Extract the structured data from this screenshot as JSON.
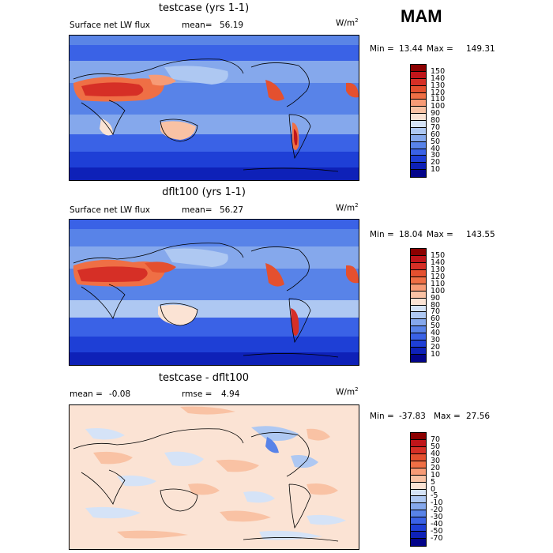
{
  "season": "MAM",
  "panels": [
    {
      "title": "testcase (yrs 1-1)",
      "left_label": "Surface net LW flux",
      "stat_label": "mean=",
      "stat_value": "56.19",
      "units": "W/m",
      "units_exp": "2",
      "min_label": "Min =",
      "min_value": "13.44",
      "max_label": "Max =",
      "max_value": "149.31",
      "levels": [
        "150",
        "140",
        "130",
        "120",
        "110",
        "100",
        "90",
        "80",
        "70",
        "60",
        "50",
        "40",
        "30",
        "20",
        "10"
      ],
      "colors": [
        "#8b0000",
        "#c0151a",
        "#d62f26",
        "#e4502f",
        "#ef6f45",
        "#f79b76",
        "#f9c2a4",
        "#fbe3d4",
        "#d5e3f7",
        "#aec8f2",
        "#85a8ec",
        "#5883e8",
        "#3a62e6",
        "#1e3fd6",
        "#0e21b8",
        "#03048a"
      ]
    },
    {
      "title": "dflt100 (yrs 1-1)",
      "left_label": "Surface net LW flux",
      "stat_label": "mean=",
      "stat_value": "56.27",
      "units": "W/m",
      "units_exp": "2",
      "min_label": "Min =",
      "min_value": "18.04",
      "max_label": "Max =",
      "max_value": "143.55",
      "levels": [
        "150",
        "140",
        "130",
        "120",
        "110",
        "100",
        "90",
        "80",
        "70",
        "60",
        "50",
        "40",
        "30",
        "20",
        "10"
      ],
      "colors": [
        "#8b0000",
        "#c0151a",
        "#d62f26",
        "#e4502f",
        "#ef6f45",
        "#f79b76",
        "#f9c2a4",
        "#fbe3d4",
        "#d5e3f7",
        "#aec8f2",
        "#85a8ec",
        "#5883e8",
        "#3a62e6",
        "#1e3fd6",
        "#0e21b8",
        "#03048a"
      ]
    },
    {
      "title": "testcase - dflt100",
      "left_label": "mean =",
      "left_value": "-0.08",
      "stat_label": "rmse =",
      "stat_value": "4.94",
      "units": "W/m",
      "units_exp": "2",
      "min_label": "Min =",
      "min_value": "-37.83",
      "max_label": "Max =",
      "max_value": "27.56",
      "levels": [
        "70",
        "50",
        "40",
        "30",
        "20",
        "10",
        "5",
        "0",
        "-5",
        "-10",
        "-20",
        "-30",
        "-40",
        "-50",
        "-70"
      ],
      "colors": [
        "#8b0000",
        "#c0151a",
        "#d62f26",
        "#e4502f",
        "#ef6f45",
        "#f79b76",
        "#f9c2a4",
        "#fbe3d4",
        "#d5e3f7",
        "#aec8f2",
        "#85a8ec",
        "#5883e8",
        "#3a62e6",
        "#1e3fd6",
        "#0e21b8",
        "#03048a"
      ]
    }
  ],
  "chart_data": [
    {
      "type": "heatmap",
      "title": "testcase (yrs 1-1)",
      "subtitle": "Surface net LW flux",
      "mean": 56.19,
      "min": 13.44,
      "max": 149.31,
      "units": "W/m2",
      "contour_levels": [
        10,
        20,
        30,
        40,
        50,
        60,
        70,
        80,
        90,
        100,
        110,
        120,
        130,
        140,
        150
      ]
    },
    {
      "type": "heatmap",
      "title": "dflt100 (yrs 1-1)",
      "subtitle": "Surface net LW flux",
      "mean": 56.27,
      "min": 18.04,
      "max": 143.55,
      "units": "W/m2",
      "contour_levels": [
        10,
        20,
        30,
        40,
        50,
        60,
        70,
        80,
        90,
        100,
        110,
        120,
        130,
        140,
        150
      ]
    },
    {
      "type": "heatmap",
      "title": "testcase - dflt100",
      "mean": -0.08,
      "rmse": 4.94,
      "min": -37.83,
      "max": 27.56,
      "units": "W/m2",
      "contour_levels": [
        -70,
        -50,
        -40,
        -30,
        -20,
        -10,
        -5,
        0,
        5,
        10,
        20,
        30,
        40,
        50,
        70
      ]
    }
  ]
}
